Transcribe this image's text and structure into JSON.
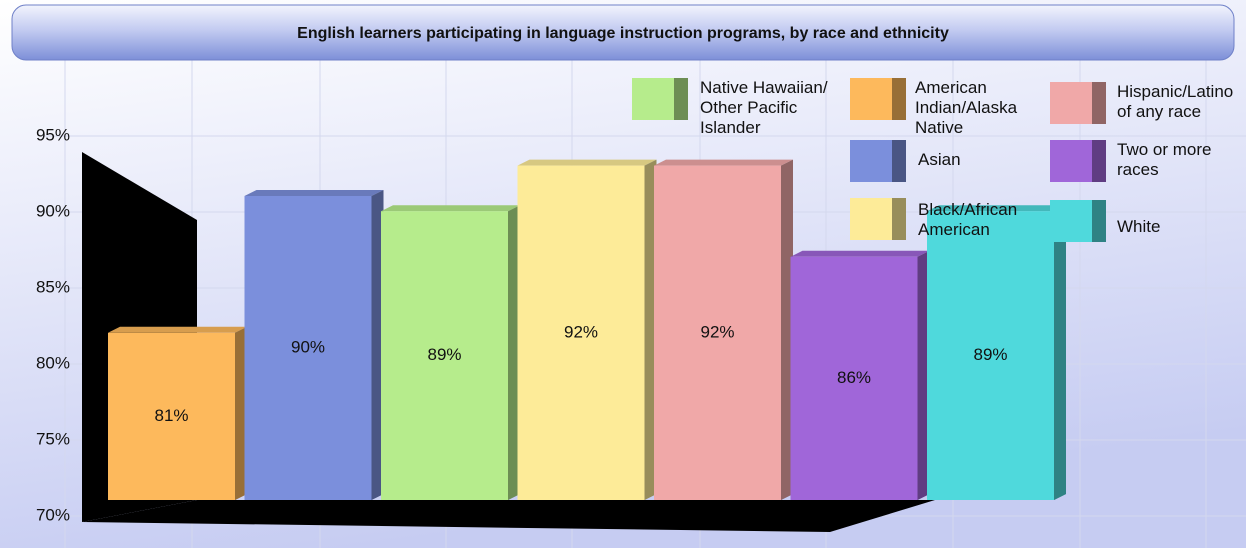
{
  "chart_data": {
    "type": "bar3d",
    "title": "English learners participating in language instruction programs, by race and ethnicity",
    "categories": [
      "American Indian/Alaska Native",
      "Asian",
      "Native Hawaiian/Other Pacific Islander",
      "Black/African American",
      "Hispanic/Latino of any race",
      "Two or more races",
      "White"
    ],
    "values": [
      81,
      90,
      89,
      92,
      92,
      86,
      89
    ],
    "value_labels": [
      "81%",
      "90%",
      "89%",
      "92%",
      "92%",
      "86%",
      "89%"
    ],
    "colors": [
      "#fdb95c",
      "#7b8fdc",
      "#b6ec8c",
      "#fdeb98",
      "#f0a8a8",
      "#a066d9",
      "#4fd9dc"
    ],
    "ylim": [
      70,
      100
    ],
    "yticks": [
      {
        "value": 70,
        "label": "70%"
      },
      {
        "value": 75,
        "label": "75%"
      },
      {
        "value": 80,
        "label": "80%"
      },
      {
        "value": 85,
        "label": "85%"
      },
      {
        "value": 90,
        "label": "90%"
      },
      {
        "value": 95,
        "label": "95%"
      }
    ],
    "grid": true,
    "legend": "top-right"
  }
}
